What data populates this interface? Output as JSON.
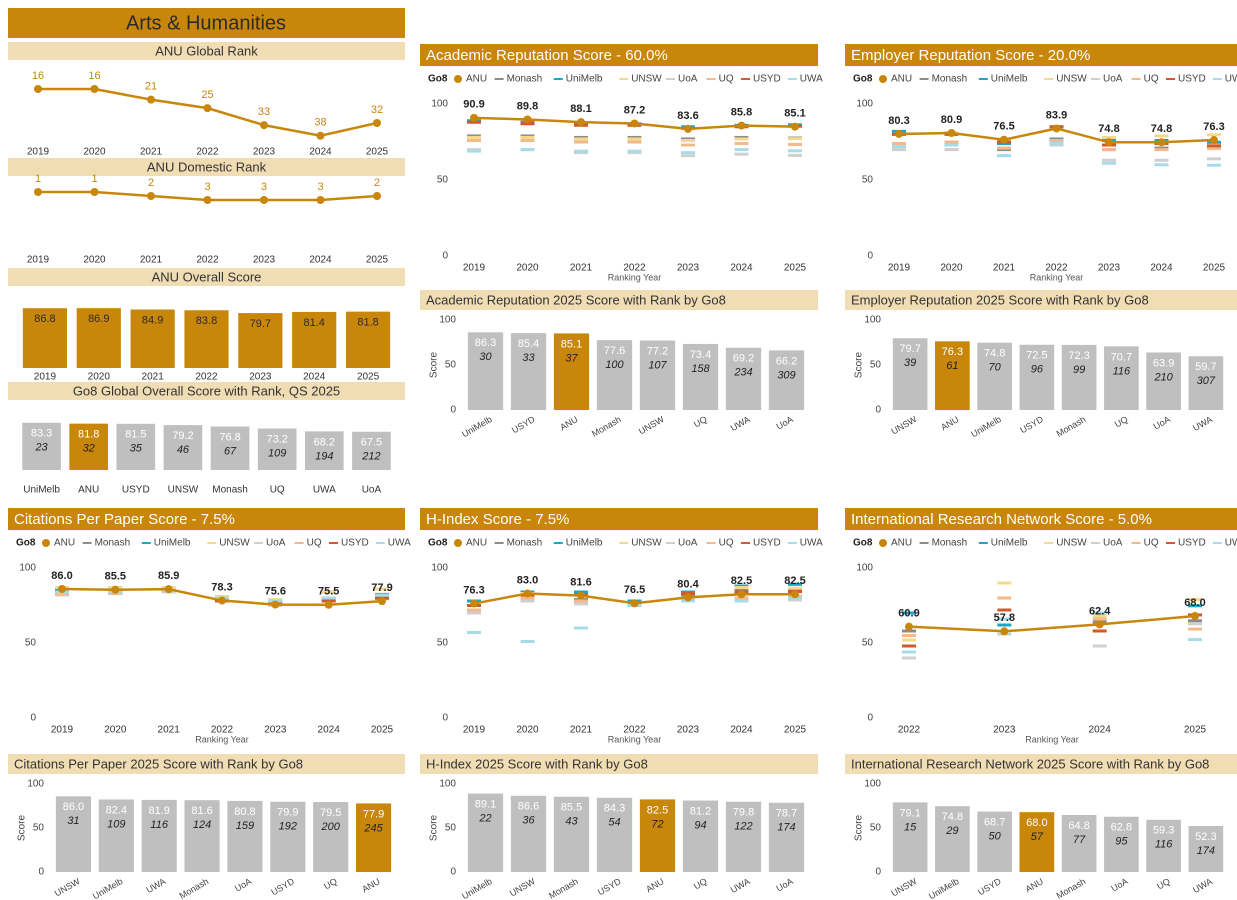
{
  "header": {
    "title": "Arts & Humanities"
  },
  "chart_data": [
    {
      "type": "line",
      "title": "ANU Global Rank",
      "categories": [
        "2019",
        "2020",
        "2021",
        "2022",
        "2023",
        "2024",
        "2025"
      ],
      "ylim": [
        40,
        8
      ],
      "series": [
        {
          "name": "ANU",
          "color": "#c8860a",
          "values": [
            16,
            16,
            21,
            25,
            33,
            38,
            32
          ]
        }
      ]
    },
    {
      "type": "line",
      "title": "ANU Domestic Rank",
      "categories": [
        "2019",
        "2020",
        "2021",
        "2022",
        "2023",
        "2024",
        "2025"
      ],
      "ylim": [
        15,
        0
      ],
      "series": [
        {
          "name": "ANU",
          "color": "#c8860a",
          "values": [
            1,
            1,
            2,
            3,
            3,
            3,
            2
          ]
        }
      ]
    },
    {
      "type": "bar",
      "title": "ANU Overall Score",
      "categories": [
        "2019",
        "2020",
        "2021",
        "2022",
        "2023",
        "2024",
        "2025"
      ],
      "values": [
        86.8,
        86.9,
        84.9,
        83.8,
        79.7,
        81.4,
        81.8
      ],
      "ylim": [
        0,
        90
      ],
      "color": "#c8860a"
    },
    {
      "type": "bar",
      "title": "Go8 Global Overall Score with Rank, QS 2025",
      "categories": [
        "UniMelb",
        "ANU",
        "USYD",
        "UNSW",
        "Monash",
        "UQ",
        "UWA",
        "UoA"
      ],
      "values": [
        83.3,
        81.8,
        81.5,
        79.2,
        76.8,
        73.2,
        68.2,
        67.5
      ],
      "ranks": [
        23,
        32,
        35,
        46,
        67,
        109,
        194,
        212
      ],
      "ylim": [
        0,
        90
      ],
      "color": "#bfbfbf",
      "highlight": "ANU",
      "highlight_color": "#c8860a"
    },
    {
      "type": "line",
      "title": "Academic Reputation Score - 60.0%",
      "legend_title": "Go8",
      "xlabel": "Ranking Year",
      "categories": [
        "2019",
        "2020",
        "2021",
        "2022",
        "2023",
        "2024",
        "2025"
      ],
      "ylim": [
        0,
        100
      ],
      "yticks": [
        0,
        50,
        100
      ],
      "series": [
        {
          "name": "ANU",
          "color": "#c8860a",
          "values": [
            90.9,
            89.8,
            88.1,
            87.2,
            83.6,
            85.8,
            85.1
          ]
        },
        {
          "name": "Monash",
          "color": "#8c8c8c",
          "values": [
            79,
            79,
            78,
            78,
            77,
            78,
            77.6
          ]
        },
        {
          "name": "UniMelb",
          "color": "#1ba6c8",
          "values": [
            89,
            88,
            87,
            87,
            85,
            86,
            86.3
          ]
        },
        {
          "name": "UNSW",
          "color": "#f5d98b",
          "values": [
            78,
            78,
            77,
            77,
            76,
            77,
            77.2
          ]
        },
        {
          "name": "UoA",
          "color": "#cfcfcf",
          "values": [
            70,
            70,
            68,
            68,
            66,
            67,
            66.2
          ]
        },
        {
          "name": "UQ",
          "color": "#f4b88a",
          "values": [
            76,
            76,
            75,
            75,
            73,
            74,
            73.4
          ]
        },
        {
          "name": "USYD",
          "color": "#cf5a2a",
          "values": [
            88,
            87,
            86,
            86,
            84,
            85,
            85.4
          ]
        },
        {
          "name": "UWA",
          "color": "#a6dcea",
          "values": [
            69,
            70,
            69,
            69,
            68,
            70,
            69.2
          ]
        }
      ]
    },
    {
      "type": "line",
      "title": "Employer Reputation Score - 20.0%",
      "legend_title": "Go8",
      "xlabel": "Ranking Year",
      "categories": [
        "2019",
        "2020",
        "2021",
        "2022",
        "2023",
        "2024",
        "2025"
      ],
      "ylim": [
        0,
        100
      ],
      "yticks": [
        0,
        50,
        100
      ],
      "series": [
        {
          "name": "ANU",
          "color": "#c8860a",
          "values": [
            80.3,
            80.9,
            76.5,
            83.9,
            74.8,
            74.8,
            76.3
          ]
        },
        {
          "name": "Monash",
          "color": "#8c8c8c",
          "values": [
            74,
            74,
            70,
            77,
            70,
            71,
            72.3
          ]
        },
        {
          "name": "UniMelb",
          "color": "#1ba6c8",
          "values": [
            82,
            81,
            74,
            85,
            76,
            76,
            74.8
          ]
        },
        {
          "name": "UNSW",
          "color": "#f5d98b",
          "values": [
            80,
            81,
            76,
            84,
            78,
            79,
            79.7
          ]
        },
        {
          "name": "UoA",
          "color": "#cfcfcf",
          "values": [
            70,
            70,
            66,
            73,
            63,
            63,
            63.9
          ]
        },
        {
          "name": "UQ",
          "color": "#f4b88a",
          "values": [
            74,
            75,
            71,
            76,
            70,
            70,
            70.7
          ]
        },
        {
          "name": "USYD",
          "color": "#cf5a2a",
          "values": [
            80,
            80,
            75,
            85,
            73,
            74,
            72.5
          ]
        },
        {
          "name": "UWA",
          "color": "#a6dcea",
          "values": [
            72,
            73,
            66,
            74,
            61,
            60,
            59.7
          ]
        }
      ]
    },
    {
      "type": "bar",
      "title": "Academic Reputation 2025 Score with Rank by Go8",
      "ylabel": "Score",
      "categories": [
        "UniMelb",
        "USYD",
        "ANU",
        "Monash",
        "UNSW",
        "UQ",
        "UWA",
        "UoA"
      ],
      "values": [
        86.3,
        85.4,
        85.1,
        77.6,
        77.2,
        73.4,
        69.2,
        66.2
      ],
      "ranks": [
        30,
        33,
        37,
        100,
        107,
        158,
        234,
        309
      ],
      "ylim": [
        0,
        100
      ],
      "yticks": [
        0,
        50,
        100
      ],
      "color": "#bfbfbf",
      "highlight": "ANU",
      "highlight_color": "#c8860a"
    },
    {
      "type": "bar",
      "title": "Employer Reputation 2025 Score with Rank by Go8",
      "ylabel": "Score",
      "categories": [
        "UNSW",
        "ANU",
        "UniMelb",
        "USYD",
        "Monash",
        "UQ",
        "UoA",
        "UWA"
      ],
      "values": [
        79.7,
        76.3,
        74.8,
        72.5,
        72.3,
        70.7,
        63.9,
        59.7
      ],
      "ranks": [
        39,
        61,
        70,
        96,
        99,
        116,
        210,
        307
      ],
      "ylim": [
        0,
        100
      ],
      "yticks": [
        0,
        50,
        100
      ],
      "color": "#bfbfbf",
      "highlight": "ANU",
      "highlight_color": "#c8860a"
    },
    {
      "type": "line",
      "title": "Citations Per Paper Score -  7.5%",
      "legend_title": "Go8",
      "xlabel": "Ranking Year",
      "categories": [
        "2019",
        "2020",
        "2021",
        "2022",
        "2023",
        "2024",
        "2025"
      ],
      "ylim": [
        0,
        100
      ],
      "yticks": [
        0,
        50,
        100
      ],
      "series": [
        {
          "name": "ANU",
          "color": "#c8860a",
          "values": [
            86,
            85.5,
            85.9,
            78.3,
            75.6,
            75.5,
            77.9
          ],
          "value_labels": [
            "86.0",
            "85.5",
            "85.9",
            "78.3",
            "75.6",
            "75.5",
            "77.9"
          ]
        },
        {
          "name": "Monash",
          "color": "#8c8c8c",
          "values": [
            83,
            84,
            85,
            79,
            76,
            79,
            81.6
          ]
        },
        {
          "name": "UniMelb",
          "color": "#1ba6c8",
          "values": [
            85,
            86,
            86,
            80,
            78,
            80,
            82.4
          ]
        },
        {
          "name": "UNSW",
          "color": "#f5d98b",
          "values": [
            87,
            87,
            87,
            81,
            79,
            84,
            86
          ]
        },
        {
          "name": "UoA",
          "color": "#cfcfcf",
          "values": [
            82,
            83,
            84,
            78,
            75,
            78,
            80.8
          ]
        },
        {
          "name": "UQ",
          "color": "#f4b88a",
          "values": [
            83,
            83,
            85,
            79,
            77,
            78,
            79.5
          ]
        },
        {
          "name": "USYD",
          "color": "#cf5a2a",
          "values": [
            84,
            84,
            85,
            78,
            76,
            78,
            79.9
          ]
        },
        {
          "name": "UWA",
          "color": "#a6dcea",
          "values": [
            84,
            84,
            85,
            80,
            78,
            80,
            81.9
          ]
        }
      ]
    },
    {
      "type": "line",
      "title": "H-Index Score - 7.5%",
      "legend_title": "Go8",
      "xlabel": "Ranking Year",
      "categories": [
        "2019",
        "2020",
        "2021",
        "2022",
        "2023",
        "2024",
        "2025"
      ],
      "ylim": [
        0,
        100
      ],
      "yticks": [
        0,
        50,
        100
      ],
      "series": [
        {
          "name": "ANU",
          "color": "#c8860a",
          "values": [
            76.3,
            83,
            81.6,
            76.5,
            80.4,
            82.5,
            82.5
          ],
          "value_labels": [
            "76.3",
            "83.0",
            "81.6",
            "76.5",
            "80.4",
            "82.5",
            "82.5"
          ]
        },
        {
          "name": "Monash",
          "color": "#8c8c8c",
          "values": [
            72,
            81,
            79,
            77,
            82,
            85,
            85.5
          ]
        },
        {
          "name": "UniMelb",
          "color": "#1ba6c8",
          "values": [
            78,
            84,
            84,
            78,
            84,
            88,
            89.1
          ]
        },
        {
          "name": "UNSW",
          "color": "#f5d98b",
          "values": [
            75,
            83,
            82,
            77,
            83,
            87,
            86.6
          ]
        },
        {
          "name": "UoA",
          "color": "#cfcfcf",
          "values": [
            70,
            78,
            76,
            75,
            78,
            79,
            78.7
          ]
        },
        {
          "name": "UQ",
          "color": "#f4b88a",
          "values": [
            72,
            80,
            78,
            76,
            79,
            80,
            81.2
          ]
        },
        {
          "name": "USYD",
          "color": "#cf5a2a",
          "values": [
            75,
            82,
            82,
            77,
            83,
            84,
            84.3
          ]
        },
        {
          "name": "UWA",
          "color": "#a6dcea",
          "values": [
            57,
            51,
            60,
            75,
            78,
            78,
            79.8
          ]
        }
      ]
    },
    {
      "type": "line",
      "title": "International Research Network Score - 5.0%",
      "legend_title": "Go8",
      "xlabel": "Ranking Year",
      "categories": [
        "2022",
        "2023",
        "2024",
        "2025"
      ],
      "ylim": [
        0,
        100
      ],
      "yticks": [
        0,
        50,
        100
      ],
      "series": [
        {
          "name": "ANU",
          "color": "#c8860a",
          "values": [
            60.9,
            57.8,
            62.4,
            68
          ],
          "value_labels": [
            "60.9",
            "57.8",
            "62.4",
            "68.0"
          ]
        },
        {
          "name": "Monash",
          "color": "#8c8c8c",
          "values": [
            58,
            66,
            64,
            64.8
          ]
        },
        {
          "name": "UniMelb",
          "color": "#1ba6c8",
          "values": [
            70,
            62,
            70,
            74.8
          ]
        },
        {
          "name": "UNSW",
          "color": "#f5d98b",
          "values": [
            52,
            90,
            68,
            79.1
          ]
        },
        {
          "name": "UoA",
          "color": "#cfcfcf",
          "values": [
            40,
            56,
            48,
            62.8
          ]
        },
        {
          "name": "UQ",
          "color": "#f4b88a",
          "values": [
            55,
            80,
            66,
            59.3
          ]
        },
        {
          "name": "USYD",
          "color": "#cf5a2a",
          "values": [
            48,
            72,
            58,
            68.7
          ]
        },
        {
          "name": "UWA",
          "color": "#a6dcea",
          "values": [
            44,
            66,
            70,
            52.3
          ]
        }
      ]
    },
    {
      "type": "bar",
      "title": "Citations Per Paper 2025 Score with Rank by Go8",
      "ylabel": "Score",
      "categories": [
        "UNSW",
        "UniMelb",
        "UWA",
        "Monash",
        "UoA",
        "USYD",
        "UQ",
        "ANU"
      ],
      "values": [
        86,
        82.4,
        81.9,
        81.6,
        80.8,
        79.9,
        79.5,
        77.9
      ],
      "value_labels": [
        "86.0",
        "82.4",
        "81.9",
        "81.6",
        "80.8",
        "79.9",
        "79.5",
        "77.9"
      ],
      "ranks": [
        31,
        109,
        116,
        124,
        159,
        192,
        200,
        245
      ],
      "ylim": [
        0,
        100
      ],
      "yticks": [
        0,
        50,
        100
      ],
      "color": "#bfbfbf",
      "highlight": "ANU",
      "highlight_color": "#c8860a"
    },
    {
      "type": "bar",
      "title": "H-Index 2025 Score with Rank by Go8",
      "ylabel": "Score",
      "categories": [
        "UniMelb",
        "UNSW",
        "Monash",
        "USYD",
        "ANU",
        "UQ",
        "UWA",
        "UoA"
      ],
      "values": [
        89.1,
        86.6,
        85.5,
        84.3,
        82.5,
        81.2,
        79.8,
        78.7
      ],
      "ranks": [
        22,
        36,
        43,
        54,
        72,
        94,
        122,
        174
      ],
      "ylim": [
        0,
        100
      ],
      "yticks": [
        0,
        50,
        100
      ],
      "color": "#bfbfbf",
      "highlight": "ANU",
      "highlight_color": "#c8860a"
    },
    {
      "type": "bar",
      "title": "International Research Network 2025 Score with Rank by Go8",
      "ylabel": "Score",
      "categories": [
        "UNSW",
        "UniMelb",
        "USYD",
        "ANU",
        "Monash",
        "UoA",
        "UQ",
        "UWA"
      ],
      "values": [
        79.1,
        74.8,
        68.7,
        68,
        64.8,
        62.8,
        59.3,
        52.3
      ],
      "value_labels": [
        "79.1",
        "74.8",
        "68.7",
        "68.0",
        "64.8",
        "62.8",
        "59.3",
        "52.3"
      ],
      "ranks": [
        15,
        29,
        50,
        57,
        77,
        95,
        116,
        174
      ],
      "ylim": [
        0,
        100
      ],
      "yticks": [
        0,
        50,
        100
      ],
      "color": "#bfbfbf",
      "highlight": "ANU",
      "highlight_color": "#c8860a"
    }
  ]
}
